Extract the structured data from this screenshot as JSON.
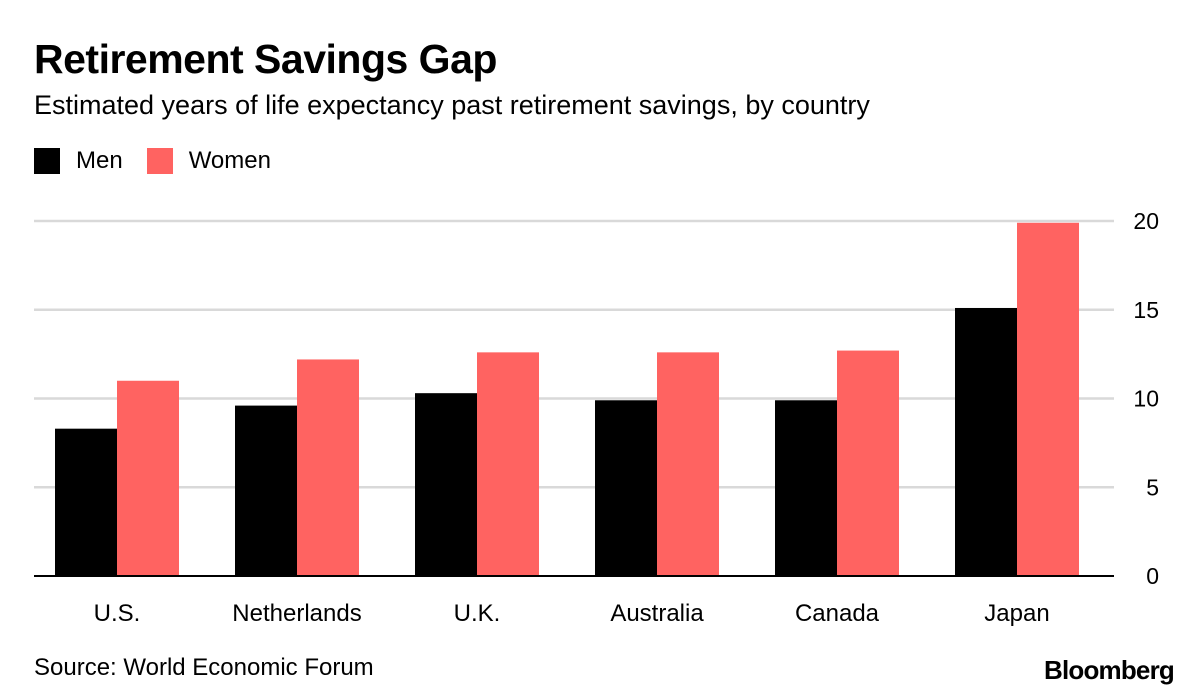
{
  "title": "Retirement Savings Gap",
  "subtitle": "Estimated years of life expectancy past retirement savings, by country",
  "source": "Source: World Economic Forum",
  "brand": "Bloomberg",
  "chart_data": {
    "type": "bar",
    "categories": [
      "U.S.",
      "Netherlands",
      "U.K.",
      "Australia",
      "Canada",
      "Japan"
    ],
    "series": [
      {
        "name": "Men",
        "color": "#000000",
        "values": [
          8.3,
          9.6,
          10.3,
          9.9,
          9.9,
          15.1
        ]
      },
      {
        "name": "Women",
        "color": "#ff6361",
        "values": [
          11.0,
          12.2,
          12.6,
          12.6,
          12.7,
          19.9
        ]
      }
    ],
    "ylim": [
      0,
      20
    ],
    "yticks": [
      0,
      5,
      10,
      15,
      20
    ],
    "y_axis_position": "right",
    "grid": true,
    "legend": "top-left",
    "xlabel": "",
    "ylabel": ""
  }
}
